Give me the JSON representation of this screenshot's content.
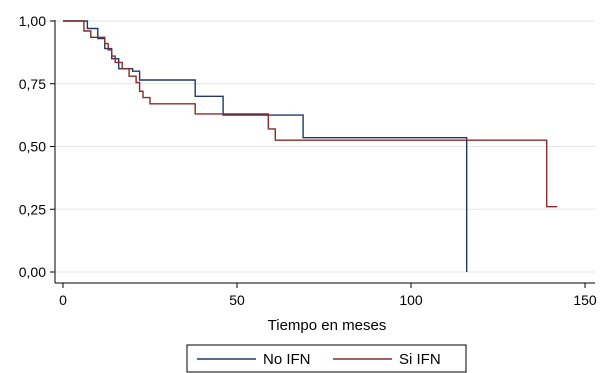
{
  "chart_data": {
    "type": "line",
    "subtype": "step",
    "title": "",
    "xlabel": "Tiempo en meses",
    "ylabel": "",
    "xlim": [
      0,
      150
    ],
    "ylim": [
      0,
      1
    ],
    "xticks": [
      0,
      50,
      100,
      150
    ],
    "xtick_labels": [
      "0",
      "50",
      "100",
      "150"
    ],
    "yticks": [
      0,
      0.25,
      0.5,
      0.75,
      1.0
    ],
    "ytick_labels": [
      "0,00",
      "0,25",
      "0,50",
      "0,75",
      "1,00"
    ],
    "grid": true,
    "legend_position": "bottom",
    "series": [
      {
        "name": "No IFN",
        "color": "#1f3a68",
        "x": [
          0,
          7,
          7,
          10,
          10,
          12,
          12,
          14,
          14,
          16,
          16,
          20,
          20,
          22,
          22,
          38,
          38,
          46,
          46,
          69,
          69,
          116,
          116
        ],
        "y": [
          1.0,
          1.0,
          0.97,
          0.97,
          0.93,
          0.93,
          0.89,
          0.89,
          0.85,
          0.85,
          0.81,
          0.81,
          0.8,
          0.8,
          0.765,
          0.765,
          0.7,
          0.7,
          0.625,
          0.625,
          0.535,
          0.535,
          0.0
        ]
      },
      {
        "name": "Si IFN",
        "color": "#8b2a2a",
        "x": [
          0,
          6,
          6,
          8,
          8,
          12,
          12,
          13,
          13,
          14,
          14,
          15,
          15,
          17,
          17,
          19,
          19,
          21,
          21,
          22,
          22,
          23,
          23,
          25,
          25,
          38,
          38,
          59,
          59,
          61,
          61,
          139,
          139,
          142
        ],
        "y": [
          1.0,
          1.0,
          0.96,
          0.96,
          0.935,
          0.935,
          0.91,
          0.91,
          0.885,
          0.885,
          0.86,
          0.86,
          0.835,
          0.835,
          0.81,
          0.81,
          0.78,
          0.78,
          0.755,
          0.755,
          0.72,
          0.72,
          0.695,
          0.695,
          0.67,
          0.67,
          0.63,
          0.63,
          0.57,
          0.57,
          0.525,
          0.525,
          0.26,
          0.26
        ]
      }
    ]
  }
}
